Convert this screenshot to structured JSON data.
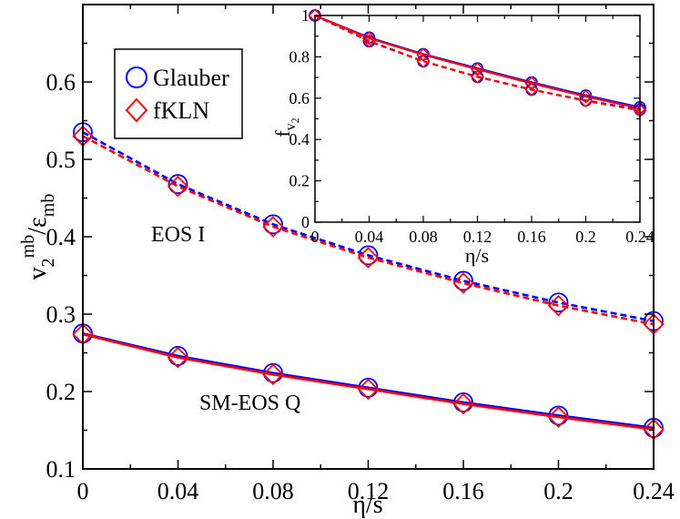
{
  "chart_data": [
    {
      "type": "line",
      "id": "main",
      "xlabel": "η/s",
      "ylabel_main": "v",
      "ylabel_sub": "2",
      "ylabel_sup": "mb",
      "ylabel_mid": "/ε",
      "ylabel_sub2": "mb",
      "xlim": [
        0,
        0.24
      ],
      "ylim": [
        0.1,
        0.7
      ],
      "xticks": [
        0,
        0.04,
        0.08,
        0.12,
        0.16,
        0.2,
        0.24
      ],
      "xtick_labels": [
        "0",
        "0.04",
        "0.08",
        "0.12",
        "0.16",
        "0.2",
        "0.24"
      ],
      "yticks": [
        0.1,
        0.2,
        0.3,
        0.4,
        0.5,
        0.6
      ],
      "ytick_labels": [
        "0.1",
        "0.2",
        "0.3",
        "0.4",
        "0.5",
        "0.6"
      ],
      "grid": false,
      "legend_position": "top-left",
      "legend": [
        {
          "name": "Glauber",
          "marker": "circle",
          "color": "#0000ff"
        },
        {
          "name": "fKLN",
          "marker": "diamond",
          "color": "#ff0000"
        }
      ],
      "annotations": [
        {
          "text": "EOS I",
          "x": 0.052,
          "y": 0.406
        },
        {
          "text": "SM-EOS Q",
          "x": 0.05,
          "y": 0.16
        }
      ],
      "x": [
        0,
        0.04,
        0.08,
        0.12,
        0.16,
        0.2,
        0.24
      ],
      "series": [
        {
          "name": "Glauber EOS I",
          "color": "#0000ff",
          "style": "dashed",
          "marker": "circle",
          "values": [
            0.535,
            0.468,
            0.416,
            0.376,
            0.343,
            0.315,
            0.291
          ]
        },
        {
          "name": "fKLN EOS I",
          "color": "#ff0000",
          "style": "dashed",
          "marker": "diamond",
          "values": [
            0.53,
            0.465,
            0.413,
            0.373,
            0.34,
            0.311,
            0.287
          ]
        },
        {
          "name": "Glauber SM-EOS Q",
          "color": "#0000ff",
          "style": "solid",
          "marker": "circle",
          "values": [
            0.275,
            0.246,
            0.224,
            0.205,
            0.186,
            0.169,
            0.153
          ]
        },
        {
          "name": "fKLN SM-EOS Q",
          "color": "#ff0000",
          "style": "solid",
          "marker": "diamond",
          "values": [
            0.274,
            0.244,
            0.222,
            0.203,
            0.184,
            0.167,
            0.151
          ]
        }
      ]
    },
    {
      "type": "line",
      "id": "inset",
      "xlabel": "η/s",
      "ylabel_main": "f",
      "ylabel_sub": "v",
      "ylabel_subsub": "2",
      "xlim": [
        0,
        0.24
      ],
      "ylim": [
        0,
        1
      ],
      "xticks": [
        0,
        0.04,
        0.08,
        0.12,
        0.16,
        0.2,
        0.24
      ],
      "xtick_labels": [
        "0",
        "0.04",
        "0.08",
        "0.12",
        "0.16",
        "0.2",
        "0.24"
      ],
      "yticks": [
        0,
        0.2,
        0.4,
        0.6,
        0.8,
        1
      ],
      "ytick_labels": [
        "0",
        "0.2",
        "0.4",
        "0.6",
        "0.8",
        "1"
      ],
      "grid": false,
      "x": [
        0,
        0.04,
        0.08,
        0.12,
        0.16,
        0.2,
        0.24
      ],
      "series": [
        {
          "name": "Glauber SM-EOS Q",
          "color": "#0000ff",
          "style": "solid",
          "marker": "circle",
          "values": [
            1.0,
            0.893,
            0.813,
            0.744,
            0.676,
            0.613,
            0.556
          ]
        },
        {
          "name": "fKLN SM-EOS Q",
          "color": "#ff0000",
          "style": "solid",
          "marker": "diamond",
          "values": [
            1.0,
            0.89,
            0.81,
            0.74,
            0.672,
            0.608,
            0.551
          ]
        },
        {
          "name": "Glauber EOS I",
          "color": "#0000ff",
          "style": "dashed",
          "marker": "circle",
          "values": [
            1.0,
            0.875,
            0.778,
            0.703,
            0.641,
            0.589,
            0.544
          ]
        },
        {
          "name": "fKLN EOS I",
          "color": "#ff0000",
          "style": "dashed",
          "marker": "diamond",
          "values": [
            1.0,
            0.877,
            0.779,
            0.704,
            0.642,
            0.587,
            0.541
          ]
        }
      ]
    }
  ]
}
